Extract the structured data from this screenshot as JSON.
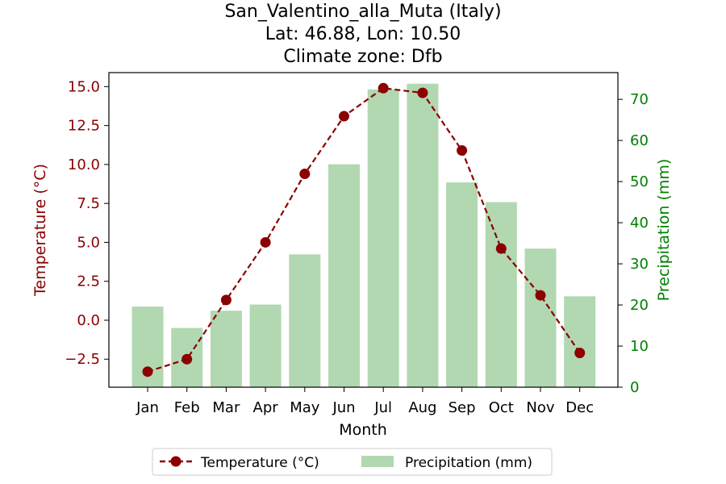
{
  "chart_data": {
    "type": "bar+line",
    "title_lines": [
      "San_Valentino_alla_Muta (Italy)",
      "Lat: 46.88, Lon: 10.50",
      "Climate zone: Dfb"
    ],
    "xlabel": "Month",
    "ylabel_left": "Temperature (°C)",
    "ylabel_right": "Precipitation (mm)",
    "categories": [
      "Jan",
      "Feb",
      "Mar",
      "Apr",
      "May",
      "Jun",
      "Jul",
      "Aug",
      "Sep",
      "Oct",
      "Nov",
      "Dec"
    ],
    "temperature": {
      "name": "Temperature (°C)",
      "values": [
        -3.3,
        -2.5,
        1.3,
        5.0,
        9.4,
        13.1,
        14.9,
        14.6,
        10.9,
        4.6,
        1.6,
        -2.1
      ]
    },
    "precipitation": {
      "name": "Precipitation (mm)",
      "values": [
        19.6,
        14.4,
        18.6,
        20.1,
        32.3,
        54.2,
        72.4,
        73.8,
        49.8,
        45.0,
        33.7,
        22.1
      ]
    },
    "ylim_left": [
      -4.3,
      15.9
    ],
    "yticks_left": [
      "−2.5",
      "0.0",
      "2.5",
      "5.0",
      "7.5",
      "10.0",
      "12.5",
      "15.0"
    ],
    "yticks_left_values": [
      -2.5,
      0,
      2.5,
      5.0,
      7.5,
      10.0,
      12.5,
      15.0
    ],
    "ylim_right": [
      0,
      76.5
    ],
    "yticks_right": [
      "0",
      "10",
      "20",
      "30",
      "40",
      "50",
      "60",
      "70"
    ],
    "yticks_right_values": [
      0,
      10,
      20,
      30,
      40,
      50,
      60,
      70
    ],
    "colors": {
      "temperature": "#8b0000",
      "precipitation": "#b1d8b1",
      "right_axis": "#008000",
      "left_axis": "#8b0000"
    },
    "legend_position": "bottom-center"
  }
}
